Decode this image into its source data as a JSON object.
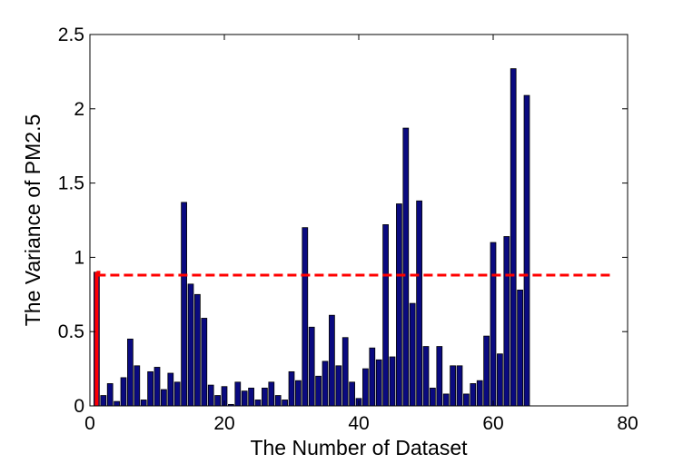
{
  "chart_data": {
    "type": "bar",
    "xlabel": "The Number of Dataset",
    "ylabel": "The Variance of PM2.5",
    "xlim": [
      0,
      80
    ],
    "ylim": [
      0,
      2.5
    ],
    "xticks": [
      0,
      20,
      40,
      60,
      80
    ],
    "yticks": [
      0,
      0.5,
      1,
      1.5,
      2,
      2.5
    ],
    "xtick_labels": [
      "0",
      "20",
      "40",
      "60",
      "80"
    ],
    "ytick_labels": [
      "0",
      "0.5",
      "1",
      "1.5",
      "2",
      "2.5"
    ],
    "grid": false,
    "bar_color": "#0a0a80",
    "bar_edge_color": "#000000",
    "x": [
      1,
      2,
      3,
      4,
      5,
      6,
      7,
      8,
      9,
      10,
      11,
      12,
      13,
      14,
      15,
      16,
      17,
      18,
      19,
      20,
      21,
      22,
      23,
      24,
      25,
      26,
      27,
      28,
      29,
      30,
      31,
      32,
      33,
      34,
      35,
      36,
      37,
      38,
      39,
      40,
      41,
      42,
      43,
      44,
      45,
      46,
      47,
      48,
      49,
      50,
      51,
      52,
      53,
      54,
      55,
      56,
      57,
      58,
      59,
      60,
      61,
      62,
      63,
      64,
      65
    ],
    "values": [
      0.9,
      0.07,
      0.15,
      0.03,
      0.19,
      0.45,
      0.27,
      0.04,
      0.23,
      0.26,
      0.11,
      0.22,
      0.16,
      1.37,
      0.82,
      0.75,
      0.59,
      0.14,
      0.07,
      0.13,
      0.01,
      0.16,
      0.1,
      0.12,
      0.04,
      0.12,
      0.16,
      0.07,
      0.04,
      0.23,
      0.17,
      1.2,
      0.53,
      0.2,
      0.3,
      0.61,
      0.27,
      0.46,
      0.16,
      0.05,
      0.25,
      0.39,
      0.31,
      1.22,
      0.33,
      1.36,
      1.87,
      0.69,
      1.38,
      0.4,
      0.12,
      0.4,
      0.08,
      0.27,
      0.27,
      0.08,
      0.15,
      0.17,
      0.47,
      1.1,
      0.35,
      1.14,
      2.27,
      0.78,
      2.09
    ],
    "reference_line": {
      "style": "dashed",
      "color": "#ff0000",
      "x_start": 1,
      "x_end": 78,
      "y": 0.88
    },
    "marker_line": {
      "color": "#ff0000",
      "x": 1,
      "y_start": 0,
      "y_end": 0.9
    }
  }
}
